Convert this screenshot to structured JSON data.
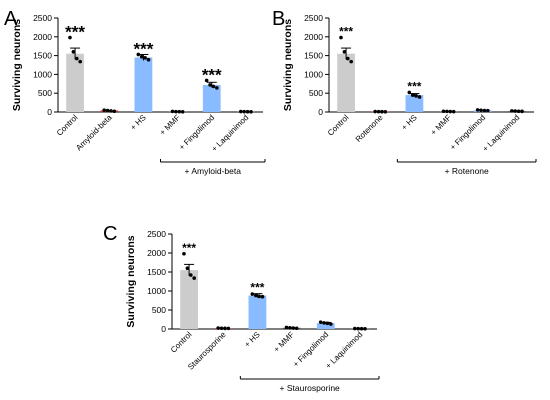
{
  "colors": {
    "control": "#cccccc",
    "toxin": "#cc3333",
    "hs": "#88bbff",
    "drug": "#555555",
    "point": "#000000"
  },
  "chart_data": [
    {
      "type": "bar",
      "panel": "A",
      "ylabel": "Surviving neurons",
      "ylim": [
        0,
        2500
      ],
      "yticks": [
        "0",
        "500",
        "1000",
        "1500",
        "2000",
        "2500"
      ],
      "categories": [
        "Control",
        "Amyloid-beta",
        "+ HS",
        "+ MMF",
        "+ Fingolimod",
        "+ Laquinimod"
      ],
      "values": [
        1550,
        40,
        1450,
        10,
        720,
        10
      ],
      "errors": [
        150,
        20,
        80,
        5,
        70,
        5
      ],
      "points": [
        [
          1980,
          1600,
          1420,
          1340
        ],
        [
          50,
          40,
          30,
          20
        ],
        [
          1530,
          1470,
          1440,
          1390
        ],
        [
          15,
          10,
          10,
          5
        ],
        [
          840,
          720,
          680,
          640
        ],
        [
          12,
          10,
          8,
          5
        ]
      ],
      "significance": [
        "***",
        "",
        "***",
        "",
        "***",
        ""
      ],
      "group_label": "+ Amyloid-beta"
    },
    {
      "type": "bar",
      "panel": "B",
      "ylabel": "Surviving neurons",
      "ylim": [
        0,
        2500
      ],
      "yticks": [
        "0",
        "500",
        "1000",
        "1500",
        "2000",
        "2500"
      ],
      "categories": [
        "Control",
        "Rotenone",
        "+ HS",
        "+ MMF",
        "+ Fingolimod",
        "+ Laquinimod"
      ],
      "values": [
        1550,
        10,
        450,
        15,
        45,
        25
      ],
      "errors": [
        150,
        5,
        40,
        5,
        10,
        5
      ],
      "points": [
        [
          1980,
          1600,
          1420,
          1340
        ],
        [
          12,
          10,
          8,
          6
        ],
        [
          520,
          450,
          430,
          400
        ],
        [
          20,
          15,
          12,
          10
        ],
        [
          55,
          45,
          40,
          35
        ],
        [
          30,
          25,
          20,
          18
        ]
      ],
      "significance": [
        "***",
        "",
        "***",
        "",
        "",
        ""
      ],
      "group_label": "+ Rotenone"
    },
    {
      "type": "bar",
      "panel": "C",
      "ylabel": "Surviving neurons",
      "ylim": [
        0,
        2500
      ],
      "yticks": [
        "0",
        "500",
        "1000",
        "1500",
        "2000",
        "2500"
      ],
      "categories": [
        "Control",
        "Staurosporine",
        "+ HS",
        "+ MMF",
        "+ Fingolimod",
        "+ Laquinimod"
      ],
      "values": [
        1550,
        20,
        880,
        30,
        155,
        10
      ],
      "errors": [
        150,
        5,
        50,
        8,
        20,
        4
      ],
      "points": [
        [
          1980,
          1600,
          1420,
          1340
        ],
        [
          25,
          20,
          18,
          15
        ],
        [
          920,
          880,
          860,
          850
        ],
        [
          40,
          30,
          25,
          20
        ],
        [
          180,
          160,
          150,
          130
        ],
        [
          12,
          10,
          8,
          6
        ]
      ],
      "significance": [
        "***",
        "",
        "***",
        "",
        "",
        ""
      ],
      "group_label": "+ Staurosporine"
    }
  ]
}
